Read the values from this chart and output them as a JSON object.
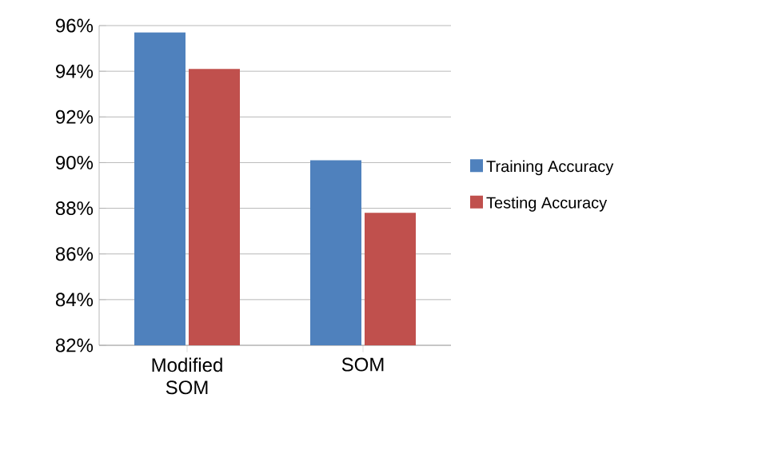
{
  "chart_data": {
    "type": "bar",
    "categories": [
      "Modified SOM",
      "SOM"
    ],
    "series": [
      {
        "name": "Training Accuracy",
        "color": "#4f81bd",
        "values": [
          95.7,
          90.1
        ]
      },
      {
        "name": "Testing Accuracy",
        "color": "#c0504d",
        "values": [
          94.1,
          87.8
        ]
      }
    ],
    "ylim": [
      82,
      96
    ],
    "yticks": [
      {
        "value": 82,
        "label": "82%"
      },
      {
        "value": 84,
        "label": "84%"
      },
      {
        "value": 86,
        "label": "86%"
      },
      {
        "value": 88,
        "label": "88%"
      },
      {
        "value": 90,
        "label": "90%"
      },
      {
        "value": 92,
        "label": "92%"
      },
      {
        "value": 94,
        "label": "94%"
      },
      {
        "value": 96,
        "label": "96%"
      }
    ],
    "grid": "y",
    "legend": "right"
  }
}
